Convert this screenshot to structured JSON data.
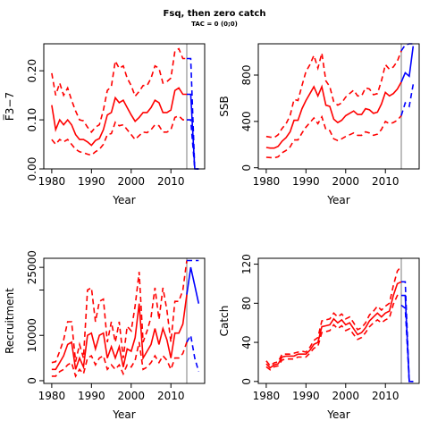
{
  "title": "Fsq, then zero catch",
  "subtitle": "TAC = 0 (0;0)",
  "colors": {
    "history": "#ff0000",
    "projection": "#0000ff",
    "marker": "#bebebe"
  },
  "chart_data": [
    {
      "type": "line",
      "ylabel": "F̅3−7",
      "xlabel": "Year",
      "xlim": [
        1978,
        2018.5
      ],
      "ylim": [
        0,
        0.255
      ],
      "xticks": [
        1980,
        1990,
        2000,
        2010
      ],
      "yticks": [
        0.0,
        0.1,
        0.2
      ],
      "ytick_labels": [
        "0.00",
        "0.10",
        "0.20"
      ],
      "vline": 2014,
      "grid": false,
      "history": {
        "x": [
          1980,
          1981,
          1982,
          1983,
          1984,
          1985,
          1986,
          1987,
          1988,
          1989,
          1990,
          1991,
          1992,
          1993,
          1994,
          1995,
          1996,
          1997,
          1998,
          1999,
          2000,
          2001,
          2002,
          2003,
          2004,
          2005,
          2006,
          2007,
          2008,
          2009,
          2010,
          2011,
          2012,
          2013,
          2014
        ],
        "mid": [
          0.13,
          0.08,
          0.1,
          0.09,
          0.1,
          0.09,
          0.07,
          0.06,
          0.06,
          0.055,
          0.048,
          0.058,
          0.062,
          0.08,
          0.11,
          0.115,
          0.145,
          0.135,
          0.14,
          0.125,
          0.11,
          0.097,
          0.105,
          0.115,
          0.115,
          0.125,
          0.14,
          0.135,
          0.115,
          0.115,
          0.12,
          0.16,
          0.165,
          0.152,
          0.152
        ],
        "upper": [
          0.195,
          0.15,
          0.175,
          0.15,
          0.165,
          0.14,
          0.118,
          0.1,
          0.098,
          0.085,
          0.075,
          0.085,
          0.09,
          0.12,
          0.16,
          0.168,
          0.22,
          0.205,
          0.21,
          0.185,
          0.17,
          0.148,
          0.158,
          0.17,
          0.17,
          0.185,
          0.21,
          0.205,
          0.175,
          0.178,
          0.185,
          0.24,
          0.245,
          0.225,
          0.225
        ],
        "lower": [
          0.06,
          0.05,
          0.06,
          0.055,
          0.06,
          0.05,
          0.04,
          0.035,
          0.033,
          0.03,
          0.028,
          0.035,
          0.04,
          0.05,
          0.07,
          0.072,
          0.095,
          0.088,
          0.09,
          0.08,
          0.07,
          0.06,
          0.068,
          0.075,
          0.074,
          0.08,
          0.09,
          0.088,
          0.075,
          0.075,
          0.08,
          0.105,
          0.108,
          0.1,
          0.1
        ]
      },
      "projection": {
        "x": [
          2014,
          2015,
          2016,
          2017
        ],
        "mid": [
          0.152,
          0.152,
          0.0,
          0.0
        ],
        "upper": [
          0.225,
          0.225,
          0.0,
          0.0
        ],
        "lower": [
          0.1,
          0.1,
          0.0,
          0.0
        ]
      }
    },
    {
      "type": "line",
      "ylabel": "SSB",
      "xlabel": "Year",
      "xlim": [
        1978,
        2018.5
      ],
      "ylim": [
        -10,
        1070
      ],
      "xticks": [
        1980,
        1990,
        2000,
        2010
      ],
      "yticks": [
        0,
        400,
        800
      ],
      "ytick_labels": [
        "0",
        "400",
        "800"
      ],
      "vline": 2014,
      "grid": false,
      "history": {
        "x": [
          1980,
          1981,
          1982,
          1983,
          1984,
          1985,
          1986,
          1987,
          1988,
          1989,
          1990,
          1991,
          1992,
          1993,
          1994,
          1995,
          1996,
          1997,
          1998,
          1999,
          2000,
          2001,
          2002,
          2003,
          2004,
          2005,
          2006,
          2007,
          2008,
          2009,
          2010,
          2011,
          2012,
          2013,
          2014
        ],
        "mid": [
          175,
          170,
          170,
          185,
          230,
          260,
          310,
          410,
          410,
          510,
          580,
          640,
          700,
          620,
          700,
          540,
          530,
          420,
          390,
          410,
          450,
          470,
          490,
          460,
          460,
          510,
          500,
          470,
          480,
          550,
          650,
          620,
          640,
          680,
          740
        ],
        "upper": [
          270,
          265,
          260,
          285,
          340,
          380,
          450,
          590,
          580,
          710,
          830,
          890,
          970,
          860,
          990,
          750,
          700,
          570,
          540,
          560,
          610,
          640,
          670,
          620,
          620,
          690,
          680,
          630,
          640,
          750,
          890,
          850,
          870,
          920,
          1010
        ],
        "lower": [
          90,
          88,
          85,
          95,
          130,
          150,
          180,
          240,
          240,
          300,
          350,
          390,
          430,
          380,
          440,
          330,
          320,
          250,
          235,
          250,
          270,
          285,
          300,
          280,
          280,
          310,
          300,
          280,
          290,
          330,
          400,
          380,
          390,
          410,
          450
        ]
      },
      "projection": {
        "x": [
          2014,
          2015,
          2016,
          2017
        ],
        "mid": [
          740,
          820,
          790,
          1050
        ],
        "upper": [
          1010,
          1060,
          1070,
          1070
        ],
        "lower": [
          450,
          560,
          530,
          720
        ]
      }
    },
    {
      "type": "line",
      "ylabel": "Recruitment",
      "xlabel": "Year",
      "xlim": [
        1978,
        2018.5
      ],
      "ylim": [
        -600,
        27000
      ],
      "xticks": [
        1980,
        1990,
        2000,
        2010
      ],
      "yticks": [
        0,
        10000,
        20000,
        25000
      ],
      "ytick_labels": [
        "0",
        "10000",
        "",
        "25000"
      ],
      "vline": 2014,
      "grid": false,
      "history": {
        "x": [
          1980,
          1981,
          1982,
          1983,
          1984,
          1985,
          1986,
          1987,
          1988,
          1989,
          1990,
          1991,
          1992,
          1993,
          1994,
          1995,
          1996,
          1997,
          1998,
          1999,
          2000,
          2001,
          2002,
          2003,
          2004,
          2005,
          2006,
          2007,
          2008,
          2009,
          2010,
          2011,
          2012,
          2013,
          2014
        ],
        "mid": [
          2500,
          2500,
          4000,
          5500,
          8000,
          8500,
          2500,
          5000,
          3000,
          10000,
          10500,
          7000,
          10000,
          10500,
          5000,
          7500,
          5000,
          7500,
          3000,
          7000,
          6500,
          9500,
          17000,
          5000,
          6500,
          8000,
          11500,
          8000,
          11500,
          9000,
          5000,
          10500,
          10500,
          12500,
          19000
        ],
        "upper": [
          4000,
          4200,
          6500,
          9000,
          13000,
          13000,
          4200,
          8000,
          5000,
          20000,
          20500,
          13000,
          17500,
          18000,
          8500,
          13000,
          8500,
          13000,
          5000,
          12000,
          11000,
          16500,
          24000,
          8500,
          11000,
          14000,
          20500,
          13500,
          20500,
          15500,
          8500,
          17500,
          17500,
          20000,
          26500
        ],
        "lower": [
          1000,
          1000,
          2000,
          2500,
          3500,
          4000,
          1000,
          2500,
          1500,
          5000,
          5500,
          3500,
          5000,
          5500,
          2500,
          3500,
          2500,
          3500,
          1500,
          3500,
          3000,
          4500,
          8500,
          2500,
          3000,
          4000,
          5500,
          4000,
          5500,
          4500,
          2500,
          5000,
          5000,
          6000,
          8500
        ]
      },
      "projection": {
        "x": [
          2014,
          2015,
          2016,
          2017
        ],
        "mid": [
          19000,
          25000,
          21000,
          17000
        ],
        "upper": [
          26500,
          26500,
          26500,
          26500
        ],
        "lower": [
          8500,
          10000,
          5000,
          2000
        ]
      }
    },
    {
      "type": "line",
      "ylabel": "Catch",
      "xlabel": "Year",
      "xlim": [
        1978,
        2018.5
      ],
      "ylim": [
        -2,
        126
      ],
      "xticks": [
        1980,
        1990,
        2000,
        2010
      ],
      "yticks": [
        0,
        40,
        80,
        120
      ],
      "ytick_labels": [
        "0",
        "40",
        "80",
        "120"
      ],
      "vline": 2014,
      "grid": false,
      "history": {
        "x": [
          1980,
          1981,
          1982,
          1983,
          1984,
          1985,
          1986,
          1987,
          1988,
          1989,
          1990,
          1991,
          1992,
          1993,
          1994,
          1995,
          1996,
          1997,
          1998,
          1999,
          2000,
          2001,
          2002,
          2003,
          2004,
          2005,
          2006,
          2007,
          2008,
          2009,
          2010,
          2011,
          2012,
          2013,
          2014
        ],
        "mid": [
          18,
          14,
          17,
          18,
          25,
          26,
          26,
          26,
          28,
          28,
          28,
          32,
          38,
          40,
          56,
          57,
          58,
          64,
          60,
          63,
          58,
          60,
          54,
          48,
          50,
          55,
          62,
          66,
          70,
          66,
          70,
          72,
          88,
          100,
          102
        ],
        "upper": [
          21,
          16,
          19,
          20,
          28,
          28,
          28,
          29,
          30,
          31,
          30,
          35,
          42,
          45,
          62,
          63,
          64,
          70,
          66,
          69,
          64,
          66,
          60,
          53,
          55,
          60,
          68,
          72,
          77,
          73,
          77,
          80,
          98,
          113,
          118
        ],
        "lower": [
          15,
          12,
          15,
          16,
          22,
          23,
          23,
          23,
          25,
          25,
          25,
          29,
          34,
          36,
          50,
          51,
          52,
          58,
          54,
          57,
          52,
          54,
          48,
          43,
          45,
          50,
          56,
          60,
          63,
          60,
          63,
          65,
          79,
          88,
          90
        ]
      },
      "projection": {
        "x": [
          2014,
          2015,
          2016,
          2017
        ],
        "mid": [
          88,
          88,
          0,
          0
        ],
        "upper": [
          102,
          102,
          0,
          0
        ],
        "lower": [
          78,
          75,
          0,
          0
        ]
      }
    }
  ]
}
